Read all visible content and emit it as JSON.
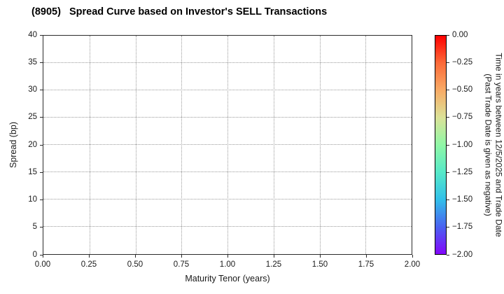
{
  "title": "(8905)   Spread Curve based on Investor's SELL Transactions",
  "chart_data": {
    "type": "scatter",
    "title": "(8905)   Spread Curve based on Investor's SELL Transactions",
    "xlabel": "Maturity Tenor (years)",
    "ylabel": "Spread (bp)",
    "xlim": [
      0.0,
      2.0
    ],
    "ylim": [
      0,
      40
    ],
    "x_ticks": [
      "0.00",
      "0.25",
      "0.50",
      "0.75",
      "1.00",
      "1.25",
      "1.50",
      "1.75",
      "2.00"
    ],
    "y_ticks": [
      "0",
      "5",
      "10",
      "15",
      "20",
      "25",
      "30",
      "35",
      "40"
    ],
    "grid": "dotted",
    "legend": "none",
    "points": [],
    "colorbar": {
      "label_line1": "Time in years between 12/5/2025 and Trade Date",
      "label_line2": "(Past Trade Date is given as negative)",
      "ticks": [
        "0.00",
        "−0.25",
        "−0.50",
        "−0.75",
        "−1.00",
        "−1.25",
        "−1.50",
        "−1.75",
        "−2.00"
      ],
      "range_top_to_bottom": [
        0.0,
        -2.0
      ],
      "colormap": "rainbow",
      "gradient_stops": [
        "#ff0000",
        "#fc6a38",
        "#f8ab66",
        "#dbe298",
        "#90f7a6",
        "#57e9c8",
        "#32c0e9",
        "#4a62f0",
        "#8206fb"
      ]
    }
  }
}
